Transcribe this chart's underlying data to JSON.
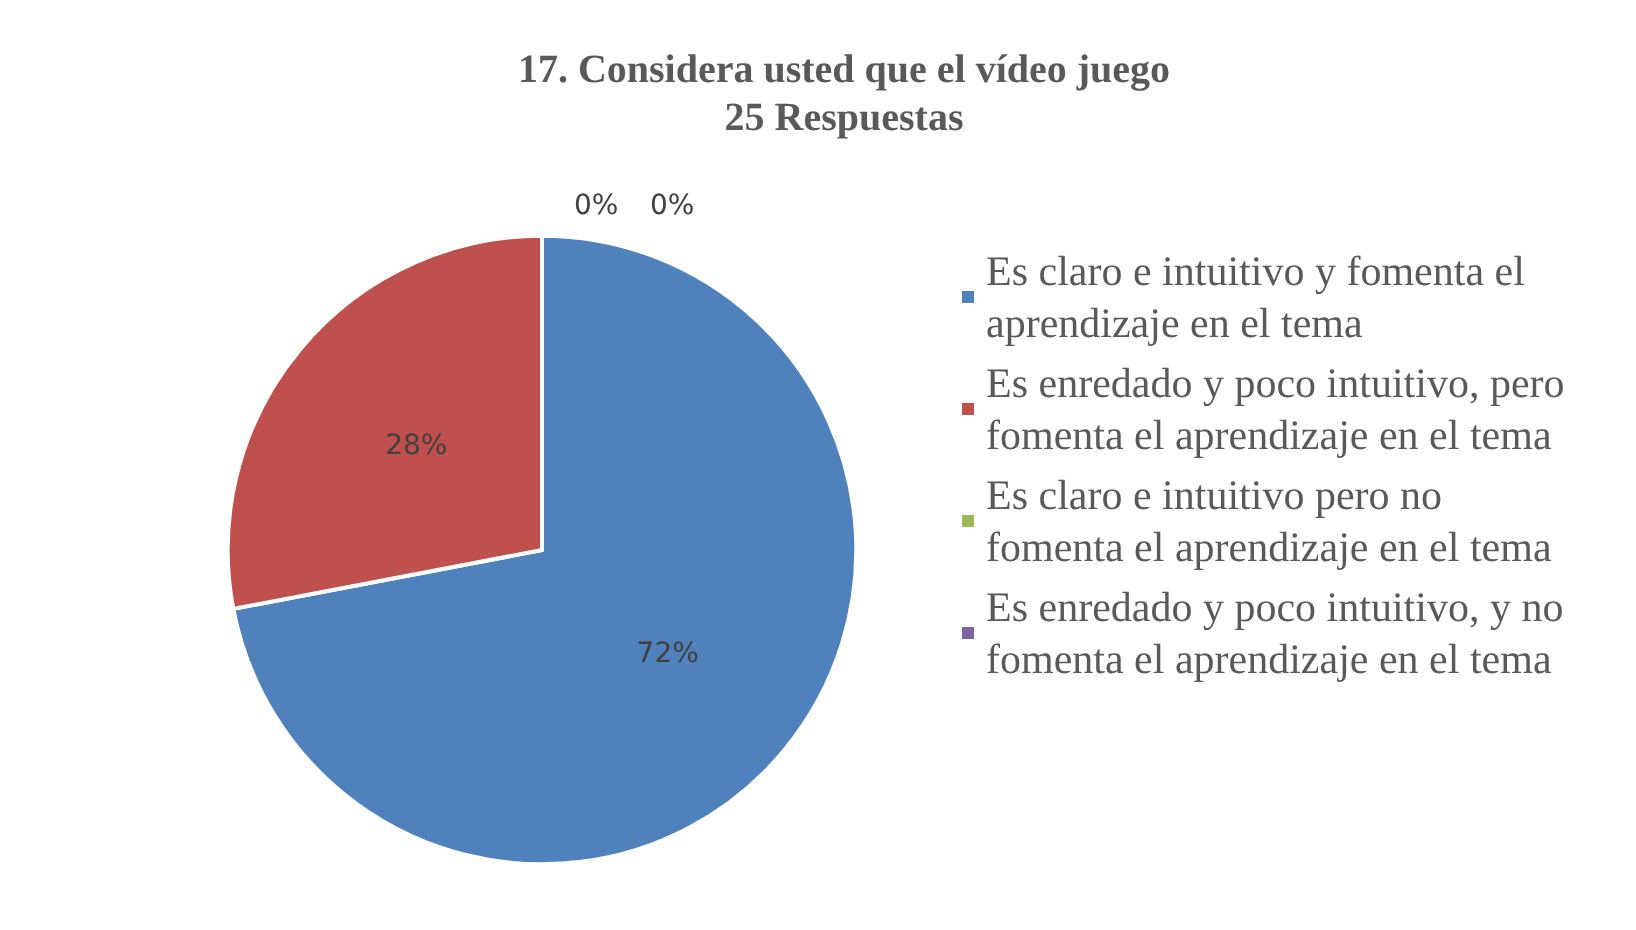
{
  "chart_data": {
    "type": "pie",
    "title": "17. Considera usted que el vídeo juego",
    "subtitle": "25 Respuestas",
    "categories": [
      "Es claro e intuitivo y fomenta el aprendizaje en el tema",
      "Es enredado y poco intuitivo, pero fomenta el aprendizaje en el tema",
      "Es claro e intuitivo pero no fomenta el aprendizaje en el tema",
      "Es enredado y poco intuitivo, y no fomenta el aprendizaje en el tema"
    ],
    "values": [
      72,
      28,
      0,
      0
    ],
    "colors": [
      "#4f81bd",
      "#c0504d",
      "#9bbb59",
      "#8064a2"
    ],
    "value_labels": [
      "72%",
      "28%",
      "0%",
      "0%"
    ],
    "legend": "right"
  }
}
